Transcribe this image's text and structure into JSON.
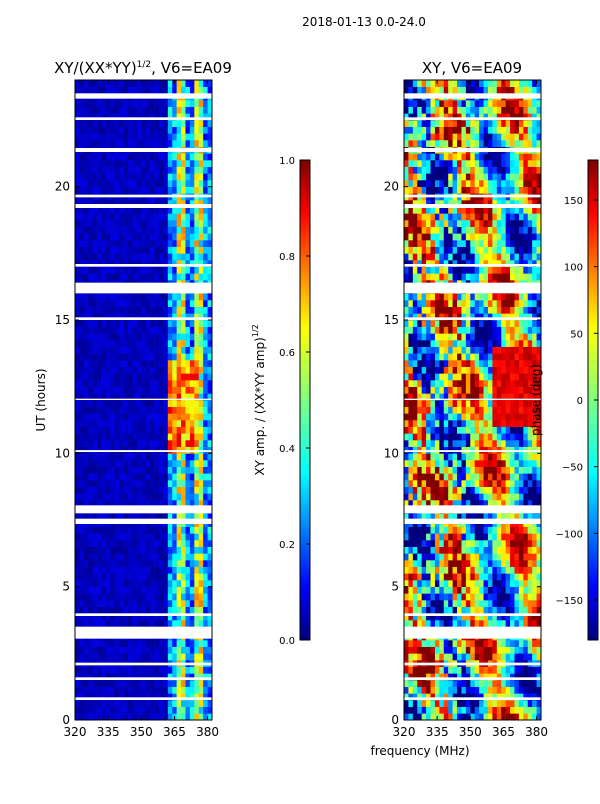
{
  "figure": {
    "suptitle": "2018-01-13 0.0-24.0"
  },
  "chart_data": [
    {
      "type": "heatmap",
      "title": "XY/(XX*YY)",
      "title_exponent": "1/2",
      "title_suffix": ", V6=EA09",
      "xlabel": "",
      "ylabel": "UT (hours)",
      "xlim": [
        320,
        382
      ],
      "ylim": [
        0,
        24
      ],
      "xticks": [
        320,
        335,
        350,
        365,
        380
      ],
      "yticks": [
        0,
        5,
        10,
        15,
        20
      ],
      "colorbar": {
        "label": "XY amp. / (XX*YY amp)",
        "label_exponent": "1/2",
        "range": [
          0.0,
          1.0
        ],
        "ticks": [
          "0.0",
          "0.2",
          "0.4",
          "0.6",
          "0.8",
          "1.0"
        ],
        "colormap": "jet"
      },
      "flagged_ut_bands": [
        [
          0.75,
          0.85
        ],
        [
          1.5,
          1.6
        ],
        [
          2.05,
          2.15
        ],
        [
          3.05,
          3.5
        ],
        [
          3.9,
          4.0
        ],
        [
          7.35,
          7.55
        ],
        [
          7.75,
          8.05
        ],
        [
          10.05,
          10.12
        ],
        [
          12.0,
          12.05
        ],
        [
          15.0,
          15.1
        ],
        [
          16.0,
          16.4
        ],
        [
          17.0,
          17.1
        ],
        [
          19.2,
          19.35
        ],
        [
          19.6,
          19.7
        ],
        [
          21.3,
          21.45
        ],
        [
          22.5,
          22.6
        ],
        [
          23.3,
          23.5
        ]
      ]
    },
    {
      "type": "heatmap",
      "title": "XY, V6=EA09",
      "xlabel": "frequency (MHz)",
      "ylabel": "",
      "xlim": [
        320,
        382
      ],
      "ylim": [
        0,
        24
      ],
      "xticks": [
        320,
        335,
        350,
        365,
        380
      ],
      "yticks": [
        0,
        5,
        10,
        15,
        20
      ],
      "colorbar": {
        "label": "phase (deg)",
        "range": [
          -180,
          180
        ],
        "ticks": [
          "150",
          "100",
          "50",
          "0",
          "−50",
          "−100",
          "−150"
        ],
        "tick_values": [
          150,
          100,
          50,
          0,
          -50,
          -100,
          -150
        ],
        "colormap": "jet"
      },
      "flagged_ut_bands": [
        [
          0.75,
          0.85
        ],
        [
          1.5,
          1.6
        ],
        [
          2.05,
          2.15
        ],
        [
          3.05,
          3.5
        ],
        [
          3.9,
          4.0
        ],
        [
          7.35,
          7.55
        ],
        [
          7.75,
          8.05
        ],
        [
          10.05,
          10.12
        ],
        [
          12.0,
          12.05
        ],
        [
          15.0,
          15.1
        ],
        [
          16.0,
          16.4
        ],
        [
          17.0,
          17.1
        ],
        [
          19.2,
          19.35
        ],
        [
          19.6,
          19.7
        ],
        [
          21.3,
          21.45
        ],
        [
          22.5,
          22.6
        ],
        [
          23.3,
          23.5
        ]
      ]
    }
  ],
  "colors": {
    "jet": [
      "#00007f",
      "#0000ff",
      "#007fff",
      "#00ffff",
      "#7fff7f",
      "#ffff00",
      "#ff7f00",
      "#ff0000",
      "#7f0000"
    ]
  }
}
